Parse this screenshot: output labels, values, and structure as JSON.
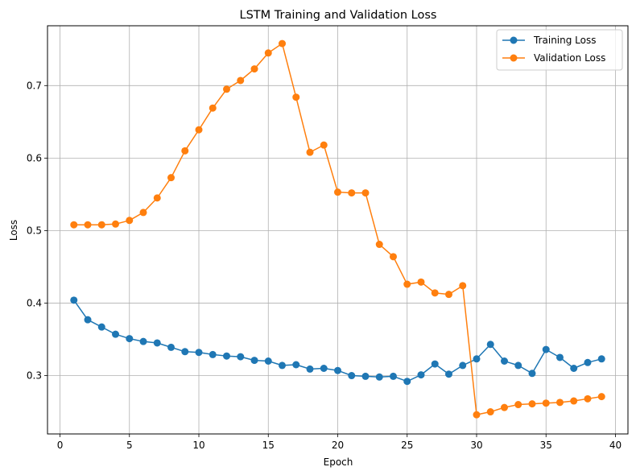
{
  "chart_data": {
    "type": "line",
    "title": "LSTM Training and Validation Loss",
    "xlabel": "Epoch",
    "ylabel": "Loss",
    "xlim": [
      -0.9,
      40.9
    ],
    "ylim": [
      0.2195,
      0.7825
    ],
    "xticks": [
      0,
      5,
      10,
      15,
      20,
      25,
      30,
      35,
      40
    ],
    "yticks": [
      0.3,
      0.4,
      0.5,
      0.6,
      0.7
    ],
    "grid": true,
    "legend_position": "top-right",
    "x": [
      1,
      2,
      3,
      4,
      5,
      6,
      7,
      8,
      9,
      10,
      11,
      12,
      13,
      14,
      15,
      16,
      17,
      18,
      19,
      20,
      21,
      22,
      23,
      24,
      25,
      26,
      27,
      28,
      29,
      30,
      31,
      32,
      33,
      34,
      35,
      36,
      37,
      38,
      39
    ],
    "series": [
      {
        "name": "Training Loss",
        "color": "#1f77b4",
        "values": [
          0.404,
          0.377,
          0.367,
          0.357,
          0.351,
          0.347,
          0.345,
          0.339,
          0.333,
          0.332,
          0.329,
          0.327,
          0.326,
          0.321,
          0.32,
          0.314,
          0.315,
          0.309,
          0.31,
          0.307,
          0.3,
          0.299,
          0.298,
          0.299,
          0.292,
          0.301,
          0.316,
          0.302,
          0.314,
          0.323,
          0.343,
          0.32,
          0.314,
          0.303,
          0.336,
          0.325,
          0.31,
          0.318,
          0.323
        ]
      },
      {
        "name": "Validation Loss",
        "color": "#ff7f0e",
        "values": [
          0.508,
          0.508,
          0.508,
          0.509,
          0.514,
          0.525,
          0.545,
          0.573,
          0.61,
          0.639,
          0.669,
          0.695,
          0.707,
          0.723,
          0.745,
          0.758,
          0.684,
          0.608,
          0.618,
          0.553,
          0.552,
          0.552,
          0.481,
          0.464,
          0.426,
          0.429,
          0.414,
          0.412,
          0.424,
          0.246,
          0.25,
          0.256,
          0.26,
          0.261,
          0.262,
          0.263,
          0.265,
          0.268,
          0.271
        ]
      }
    ]
  }
}
